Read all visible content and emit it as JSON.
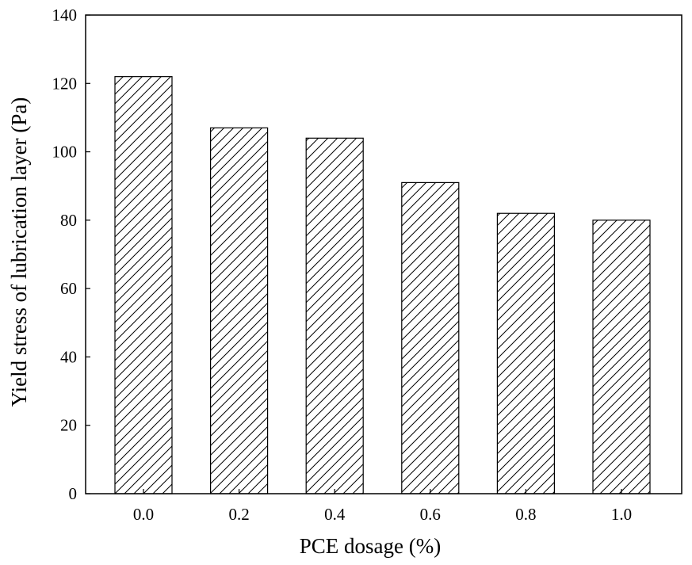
{
  "chart_data": {
    "type": "bar",
    "title": "",
    "xlabel": "PCE dosage (%)",
    "ylabel": "Yield stress of lubrication layer (Pa)",
    "categories": [
      "0.0",
      "0.2",
      "0.4",
      "0.6",
      "0.8",
      "1.0"
    ],
    "values": [
      122,
      107,
      104,
      91,
      82,
      80
    ],
    "ylim": [
      0,
      140
    ],
    "yticks": [
      0,
      20,
      40,
      60,
      80,
      100,
      120,
      140
    ],
    "grid": false,
    "legend": "none",
    "bar_fill": "hatched",
    "colors": {
      "bar_edge": "#000000",
      "hatch": "#000000",
      "background": "#ffffff",
      "axis": "#000000"
    }
  }
}
